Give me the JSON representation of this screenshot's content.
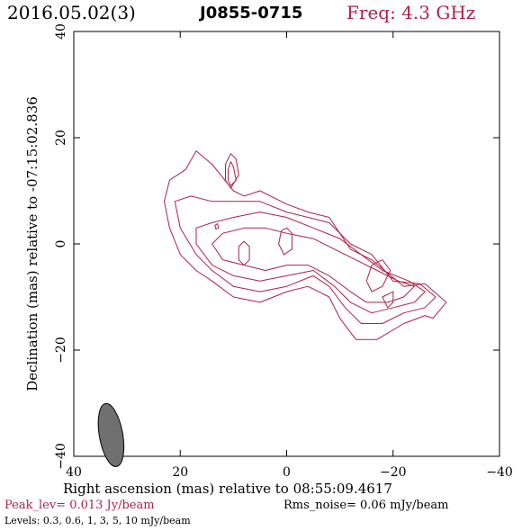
{
  "header": {
    "date": "2016.05.02(3)",
    "source": "J0855-0715",
    "freq": "Freq: 4.3 GHz"
  },
  "footer": {
    "peak": "Peak_lev=  0.013 Jy/beam",
    "rms": "Rms_noise= 0.06 mJy/beam",
    "levels": "Levels: 0.3, 0.6,   1,   3,   5,  10 mJy/beam"
  },
  "colors": {
    "contour": "#b0204a",
    "beam": "#707070",
    "freq": "#b0204a"
  },
  "chart_data": {
    "type": "contour",
    "title": "J0855-0715",
    "xlabel": "Right ascension (mas) relative to 08:55:09.4617",
    "ylabel": "Declination (mas) relative to -07:15:02.836",
    "xlim": [
      40,
      -40
    ],
    "ylim": [
      -40,
      40
    ],
    "xticks": [
      40,
      20,
      0,
      -20,
      -40
    ],
    "yticks": [
      -40,
      -20,
      0,
      20,
      40
    ],
    "xtick_labels": [
      "40",
      "20",
      "0",
      "−20",
      "−40"
    ],
    "ytick_labels": [
      "−40",
      "−20",
      "0",
      "20",
      "40"
    ],
    "levels_mJy": [
      0.3,
      0.6,
      1,
      3,
      5,
      10
    ],
    "contours": [
      [
        [
          -22,
          -15
        ],
        [
          -26,
          -13.5
        ],
        [
          -27.5,
          -14
        ],
        [
          -30,
          -11
        ],
        [
          -26,
          -7.5
        ],
        [
          -22,
          -8
        ],
        [
          -16,
          -3
        ],
        [
          -12,
          -1
        ],
        [
          -8,
          5
        ],
        [
          -4,
          6
        ],
        [
          0,
          7.5
        ],
        [
          5,
          10
        ],
        [
          8,
          9
        ],
        [
          10,
          10
        ],
        [
          14,
          15
        ],
        [
          17,
          17.5
        ],
        [
          19,
          14
        ],
        [
          22,
          12
        ],
        [
          23,
          8
        ],
        [
          22,
          3
        ],
        [
          20,
          -2
        ],
        [
          17,
          -5
        ],
        [
          14,
          -7
        ],
        [
          10,
          -10
        ],
        [
          5,
          -11
        ],
        [
          0,
          -9
        ],
        [
          -4,
          -8
        ],
        [
          -8,
          -10
        ],
        [
          -10,
          -14
        ],
        [
          -13,
          -18
        ],
        [
          -17,
          -18
        ]
      ],
      [
        [
          -22,
          -13
        ],
        [
          -26,
          -12
        ],
        [
          -28,
          -10
        ],
        [
          -25,
          -7.5
        ],
        [
          -20,
          -7
        ],
        [
          -16,
          -2
        ],
        [
          -12,
          0
        ],
        [
          -8,
          4
        ],
        [
          -4,
          5
        ],
        [
          0,
          6
        ],
        [
          5,
          8
        ],
        [
          10,
          8
        ],
        [
          14,
          8
        ],
        [
          18,
          9
        ],
        [
          21,
          8
        ],
        [
          20,
          3
        ],
        [
          17,
          -2
        ],
        [
          14,
          -5
        ],
        [
          10,
          -8
        ],
        [
          5,
          -9
        ],
        [
          0,
          -8
        ],
        [
          -5,
          -6
        ],
        [
          -8,
          -8
        ],
        [
          -11,
          -12
        ],
        [
          -14,
          -15
        ],
        [
          -18,
          -15
        ]
      ],
      [
        [
          -20,
          -12
        ],
        [
          -24,
          -11
        ],
        [
          -26,
          -9
        ],
        [
          -23,
          -7
        ],
        [
          -18,
          -5
        ],
        [
          -14,
          -2
        ],
        [
          -10,
          1
        ],
        [
          -5,
          3
        ],
        [
          0,
          5
        ],
        [
          5,
          6
        ],
        [
          10,
          5
        ],
        [
          14,
          4
        ],
        [
          17,
          3
        ],
        [
          17,
          0
        ],
        [
          14,
          -4
        ],
        [
          10,
          -6
        ],
        [
          5,
          -7
        ],
        [
          0,
          -6
        ],
        [
          -5,
          -5
        ],
        [
          -9,
          -8
        ],
        [
          -12,
          -11
        ],
        [
          -16,
          -13
        ]
      ],
      [
        [
          -19,
          -11
        ],
        [
          -22,
          -10
        ],
        [
          -24,
          -8
        ],
        [
          -21,
          -7
        ],
        [
          -17,
          -5
        ],
        [
          -13,
          -3
        ],
        [
          -9,
          -1
        ],
        [
          -5,
          1
        ],
        [
          0,
          2
        ],
        [
          4,
          3
        ],
        [
          8,
          3
        ],
        [
          12,
          2
        ],
        [
          14,
          0
        ],
        [
          12,
          -3
        ],
        [
          8,
          -4
        ],
        [
          4,
          -5
        ],
        [
          0,
          -4
        ],
        [
          -4,
          -4
        ],
        [
          -8,
          -6
        ],
        [
          -12,
          -9
        ],
        [
          -15,
          -11
        ]
      ],
      [
        [
          -16,
          -9
        ],
        [
          -18,
          -8
        ],
        [
          -19.5,
          -5
        ],
        [
          -18,
          -3
        ],
        [
          -16,
          -4
        ],
        [
          -15,
          -7
        ]
      ],
      [
        [
          -18,
          -10
        ],
        [
          -20,
          -9
        ],
        [
          -20,
          -11
        ],
        [
          -19,
          -12
        ]
      ],
      [
        [
          -1,
          -1
        ],
        [
          -1,
          2
        ],
        [
          0,
          3
        ],
        [
          1,
          2.5
        ],
        [
          1.5,
          0
        ],
        [
          0.5,
          -2
        ]
      ],
      [
        [
          7,
          -3
        ],
        [
          7,
          -0.5
        ],
        [
          8,
          0.5
        ],
        [
          9,
          -0.5
        ],
        [
          9,
          -3
        ],
        [
          8,
          -4
        ]
      ],
      [
        [
          9,
          13
        ],
        [
          9.5,
          16
        ],
        [
          10.5,
          17
        ],
        [
          11.5,
          15
        ],
        [
          11.5,
          12
        ],
        [
          10.5,
          10.5
        ]
      ],
      [
        [
          9.5,
          12
        ],
        [
          10,
          14.5
        ],
        [
          10.5,
          15.5
        ],
        [
          11,
          14
        ],
        [
          11,
          12
        ],
        [
          10.5,
          11
        ]
      ],
      [
        [
          12.8,
          3
        ],
        [
          13,
          3.8
        ],
        [
          13.5,
          3.5
        ],
        [
          13.3,
          2.8
        ]
      ]
    ],
    "beam": {
      "x": 33,
      "y": -36,
      "major_mas": 6,
      "minor_mas": 2.2,
      "pa_deg": -10
    }
  }
}
